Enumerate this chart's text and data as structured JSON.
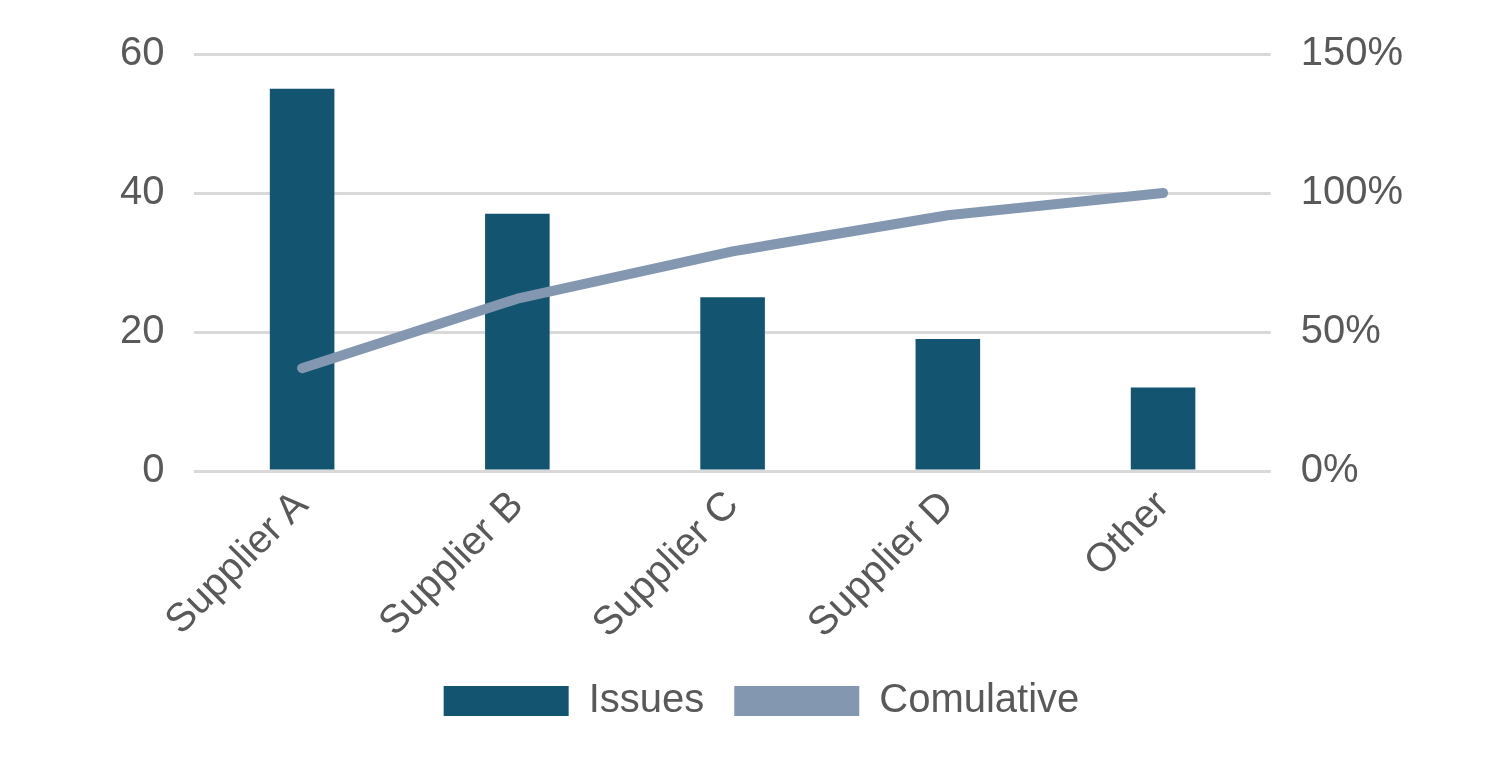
{
  "chart_data": {
    "type": "bar",
    "categories": [
      "Supplier A",
      "Supplier B",
      "Supplier C",
      "Supplier D",
      "Other"
    ],
    "series": [
      {
        "name": "Issues",
        "color": "#135570",
        "values": [
          55,
          37,
          25,
          19,
          12
        ]
      },
      {
        "name": "Comulative",
        "type": "line",
        "axis": "y2",
        "color": "#8497b0",
        "values": [
          37,
          62,
          79,
          92,
          100
        ]
      }
    ],
    "ylim": [
      0,
      60
    ],
    "yticks": [
      0,
      20,
      40,
      60
    ],
    "y2lim": [
      0,
      150
    ],
    "y2ticks": [
      {
        "value": 0,
        "label": "0%"
      },
      {
        "value": 50,
        "label": "50%"
      },
      {
        "value": 100,
        "label": "100%"
      },
      {
        "value": 150,
        "label": "150%"
      }
    ],
    "grid": "y",
    "legend": "bottom",
    "marker": "none",
    "line_style": "solid"
  }
}
